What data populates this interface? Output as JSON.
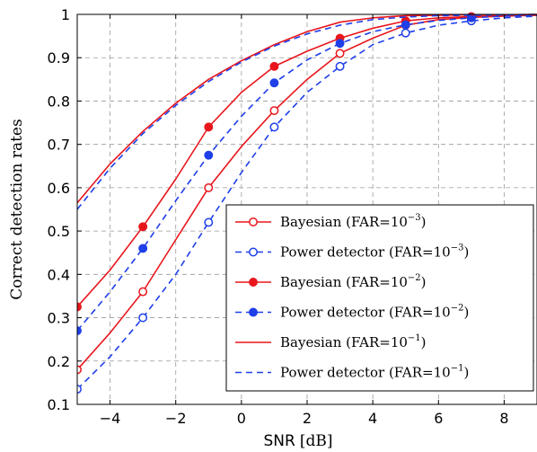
{
  "chart_data": {
    "type": "line",
    "xlabel_sans": "SNR",
    "xlabel_unit": "[dB]",
    "ylabel": "Correct detection rates",
    "xlim": [
      -5,
      9
    ],
    "ylim": [
      0.1,
      1.0
    ],
    "xticks": [
      -4,
      -2,
      0,
      2,
      4,
      6,
      8
    ],
    "xtick_labels": [
      "−4",
      "−2",
      "0",
      "2",
      "4",
      "6",
      "8"
    ],
    "yticks": [
      0.1,
      0.2,
      0.3,
      0.4,
      0.5,
      0.6,
      0.7,
      0.8,
      0.9,
      1.0
    ],
    "ytick_labels": [
      "0.1",
      "0.2",
      "0.3",
      "0.4",
      "0.5",
      "0.6",
      "0.7",
      "0.8",
      "0.9",
      "1"
    ],
    "grid": true,
    "legend_position": "bottom-right",
    "series": [
      {
        "name": "Bayesian (FAR=10",
        "exp": "−3",
        "close": ")",
        "color": "#e8161c",
        "dash": "solid",
        "marker": "open-circle",
        "x": [
          -5,
          -4,
          -3,
          -2,
          -1,
          0,
          1,
          2,
          3,
          4,
          5,
          6,
          7,
          8,
          9
        ],
        "y": [
          0.18,
          0.265,
          0.36,
          0.48,
          0.6,
          0.695,
          0.778,
          0.85,
          0.91,
          0.945,
          0.975,
          0.988,
          0.993,
          0.996,
          0.998
        ],
        "mx": [
          -5,
          -3,
          -1,
          1,
          3,
          5,
          7
        ],
        "my": [
          0.18,
          0.36,
          0.6,
          0.778,
          0.91,
          0.975,
          0.993
        ]
      },
      {
        "name": "Power detector (FAR=10",
        "exp": "−3",
        "close": ")",
        "color": "#1f3fe8",
        "dash": "dashed",
        "marker": "open-circle",
        "x": [
          -5,
          -4,
          -3,
          -2,
          -1,
          0,
          1,
          2,
          3,
          4,
          5,
          6,
          7,
          8,
          9
        ],
        "y": [
          0.135,
          0.21,
          0.3,
          0.4,
          0.52,
          0.635,
          0.74,
          0.82,
          0.88,
          0.93,
          0.957,
          0.975,
          0.985,
          0.992,
          0.996
        ],
        "mx": [
          -5,
          -3,
          -1,
          1,
          3,
          5,
          7
        ],
        "my": [
          0.135,
          0.3,
          0.52,
          0.74,
          0.88,
          0.957,
          0.985
        ]
      },
      {
        "name": "Bayesian (FAR=10",
        "exp": "−2",
        "close": ")",
        "color": "#e8161c",
        "dash": "solid",
        "marker": "filled-circle",
        "x": [
          -5,
          -4,
          -3,
          -2,
          -1,
          0,
          1,
          2,
          3,
          4,
          5,
          6,
          7,
          8,
          9
        ],
        "y": [
          0.325,
          0.41,
          0.51,
          0.62,
          0.74,
          0.82,
          0.88,
          0.915,
          0.945,
          0.968,
          0.985,
          0.992,
          0.995,
          0.997,
          0.998
        ],
        "mx": [
          -5,
          -3,
          -1,
          1,
          3,
          5,
          7
        ],
        "my": [
          0.325,
          0.51,
          0.74,
          0.88,
          0.945,
          0.985,
          0.995
        ]
      },
      {
        "name": "Power detector (FAR=10",
        "exp": "−2",
        "close": ")",
        "color": "#1f3fe8",
        "dash": "dashed",
        "marker": "filled-circle",
        "x": [
          -5,
          -4,
          -3,
          -2,
          -1,
          0,
          1,
          2,
          3,
          4,
          5,
          6,
          7,
          8,
          9
        ],
        "y": [
          0.27,
          0.36,
          0.46,
          0.57,
          0.675,
          0.765,
          0.842,
          0.895,
          0.933,
          0.96,
          0.976,
          0.986,
          0.992,
          0.996,
          0.998
        ],
        "mx": [
          -5,
          -3,
          -1,
          1,
          3,
          5,
          7
        ],
        "my": [
          0.27,
          0.46,
          0.675,
          0.842,
          0.933,
          0.976,
          0.992
        ]
      },
      {
        "name": "Bayesian (FAR=10",
        "exp": "−1",
        "close": ")",
        "color": "#e8161c",
        "dash": "solid",
        "marker": "none",
        "x": [
          -5,
          -4,
          -3,
          -2,
          -1,
          0,
          1,
          2,
          3,
          4,
          5,
          6,
          7,
          8,
          9
        ],
        "y": [
          0.565,
          0.655,
          0.73,
          0.795,
          0.85,
          0.893,
          0.93,
          0.96,
          0.982,
          0.992,
          0.997,
          0.998,
          0.999,
          0.999,
          1.0
        ],
        "mx": [],
        "my": []
      },
      {
        "name": "Power detector (FAR=10",
        "exp": "−1",
        "close": ")",
        "color": "#1f3fe8",
        "dash": "dashed",
        "marker": "none",
        "x": [
          -5,
          -4,
          -3,
          -2,
          -1,
          0,
          1,
          2,
          3,
          4,
          5,
          6,
          7,
          8,
          9
        ],
        "y": [
          0.55,
          0.645,
          0.725,
          0.79,
          0.845,
          0.89,
          0.927,
          0.955,
          0.975,
          0.988,
          0.994,
          0.997,
          0.998,
          0.999,
          1.0
        ],
        "mx": [],
        "my": []
      }
    ]
  }
}
